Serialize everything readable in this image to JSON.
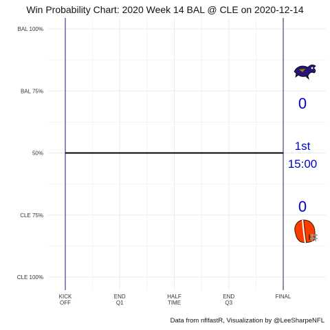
{
  "title": "Win Probability Chart: 2020 Week 14 BAL @ CLE on 2020-12-14",
  "caption": "Data from nflfastR, Visualization by @LeeSharpeNFL",
  "chart_data": {
    "type": "line",
    "title": "Win Probability Chart: 2020 Week 14 BAL @ CLE on 2020-12-14",
    "x_ticks": [
      {
        "pos": 0,
        "label": [
          "KICK",
          "OFF"
        ]
      },
      {
        "pos": 1,
        "label": [
          "END",
          "Q1"
        ]
      },
      {
        "pos": 2,
        "label": [
          "HALF",
          "TIME"
        ]
      },
      {
        "pos": 3,
        "label": [
          "END",
          "Q3"
        ]
      },
      {
        "pos": 4,
        "label": [
          "FINAL"
        ]
      }
    ],
    "y_ticks": [
      {
        "value": 1.0,
        "label": "BAL 100%"
      },
      {
        "value": 0.75,
        "label": "BAL 75%"
      },
      {
        "value": 0.5,
        "label": "50%"
      },
      {
        "value": 0.25,
        "label": "CLE 75%"
      },
      {
        "value": 0.0,
        "label": "CLE 100%"
      }
    ],
    "ylim": [
      0,
      1
    ],
    "xlim": [
      0,
      4
    ],
    "grid": true,
    "series": [
      {
        "color": "#000000",
        "x": [
          0,
          4
        ],
        "y": [
          0.5,
          0.5
        ]
      }
    ],
    "vertical_lines_color": "#1a1a6e",
    "annotations": {
      "away_score": "0",
      "home_score": "0",
      "quarter": "1st",
      "clock": "15:00",
      "text_color": "#0000cc"
    },
    "logos": {
      "away": "ravens-logo",
      "home": "browns-logo"
    }
  }
}
